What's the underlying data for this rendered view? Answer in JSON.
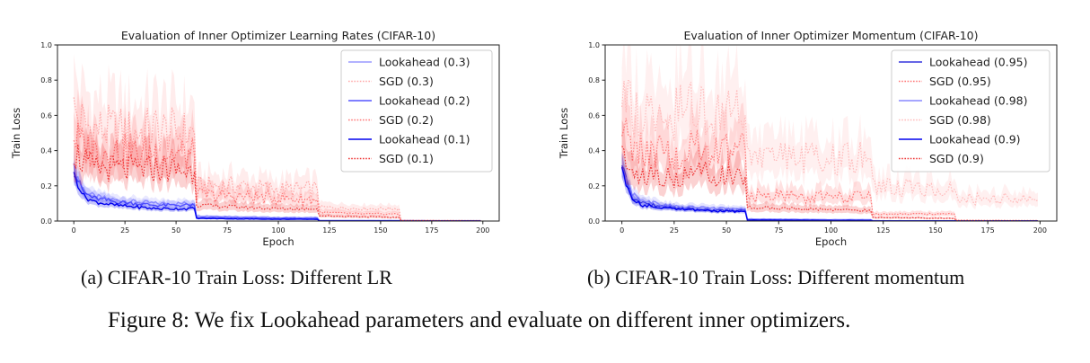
{
  "subcaptions": {
    "a": "(a) CIFAR-10 Train Loss: Different LR",
    "b": "(b) CIFAR-10 Train Loss: Different momentum"
  },
  "figure_caption": "Figure 8: We fix Lookahead parameters and evaluate on different inner optimizers.",
  "chart_data": [
    {
      "type": "line",
      "title": "Evaluation of Inner Optimizer Learning Rates (CIFAR-10)",
      "xlabel": "Epoch",
      "ylabel": "Train Loss",
      "xlim": [
        -8,
        208
      ],
      "ylim": [
        0,
        1.0
      ],
      "xticks": [
        0,
        25,
        50,
        75,
        100,
        125,
        150,
        175,
        200
      ],
      "yticks": [
        0.0,
        0.2,
        0.4,
        0.6,
        0.8,
        1.0
      ],
      "grid": false,
      "legend_position": "top-right",
      "series": [
        {
          "name": "Lookahead (0.3)",
          "color": "#9999ff",
          "style": "solid",
          "x": [
            0,
            5,
            10,
            20,
            30,
            40,
            50,
            59,
            60,
            80,
            100,
            119,
            120,
            160,
            199
          ],
          "y": [
            0.3,
            0.17,
            0.14,
            0.12,
            0.11,
            0.1,
            0.1,
            0.1,
            0.03,
            0.025,
            0.02,
            0.02,
            0.003,
            0.002,
            0.002
          ]
        },
        {
          "name": "SGD (0.3)",
          "color": "#ffaaaa",
          "style": "dotted",
          "x": [
            0,
            5,
            10,
            20,
            30,
            40,
            50,
            59,
            60,
            80,
            100,
            119,
            120,
            140,
            159,
            160,
            199
          ],
          "y": [
            0.62,
            0.55,
            0.52,
            0.52,
            0.5,
            0.52,
            0.5,
            0.5,
            0.2,
            0.2,
            0.18,
            0.18,
            0.08,
            0.07,
            0.07,
            0.005,
            0.003
          ]
        },
        {
          "name": "Lookahead (0.2)",
          "color": "#5555ff",
          "style": "solid",
          "x": [
            0,
            5,
            10,
            20,
            30,
            40,
            50,
            59,
            60,
            80,
            100,
            119,
            120,
            160,
            199
          ],
          "y": [
            0.28,
            0.16,
            0.13,
            0.11,
            0.1,
            0.09,
            0.09,
            0.09,
            0.02,
            0.018,
            0.015,
            0.015,
            0.002,
            0.002,
            0.001
          ]
        },
        {
          "name": "SGD (0.2)",
          "color": "#ff7777",
          "style": "dotted",
          "x": [
            0,
            5,
            10,
            20,
            30,
            40,
            50,
            59,
            60,
            80,
            100,
            119,
            120,
            140,
            159,
            160,
            199
          ],
          "y": [
            0.48,
            0.42,
            0.4,
            0.4,
            0.38,
            0.4,
            0.38,
            0.37,
            0.15,
            0.14,
            0.13,
            0.12,
            0.05,
            0.04,
            0.04,
            0.003,
            0.002
          ]
        },
        {
          "name": "Lookahead (0.1)",
          "color": "#0000ee",
          "style": "solid",
          "x": [
            0,
            5,
            10,
            20,
            30,
            40,
            50,
            59,
            60,
            80,
            100,
            119,
            120,
            160,
            199
          ],
          "y": [
            0.26,
            0.14,
            0.11,
            0.09,
            0.08,
            0.07,
            0.07,
            0.07,
            0.015,
            0.012,
            0.01,
            0.01,
            0.001,
            0.001,
            0.001
          ]
        },
        {
          "name": "SGD (0.1)",
          "color": "#ee3333",
          "style": "dotted",
          "x": [
            0,
            5,
            10,
            20,
            30,
            40,
            50,
            59,
            60,
            80,
            100,
            119,
            120,
            140,
            159,
            160,
            199
          ],
          "y": [
            0.4,
            0.33,
            0.3,
            0.3,
            0.29,
            0.3,
            0.29,
            0.28,
            0.09,
            0.08,
            0.07,
            0.07,
            0.03,
            0.025,
            0.02,
            0.002,
            0.001
          ]
        }
      ]
    },
    {
      "type": "line",
      "title": "Evaluation of Inner Optimizer Momentum (CIFAR-10)",
      "xlabel": "Epoch",
      "ylabel": "Train Loss",
      "xlim": [
        -8,
        208
      ],
      "ylim": [
        0,
        1.0
      ],
      "xticks": [
        0,
        25,
        50,
        75,
        100,
        125,
        150,
        175,
        200
      ],
      "yticks": [
        0.0,
        0.2,
        0.4,
        0.6,
        0.8,
        1.0
      ],
      "grid": false,
      "legend_position": "top-right",
      "series": [
        {
          "name": "Lookahead (0.95)",
          "color": "#3333dd",
          "style": "solid",
          "x": [
            0,
            5,
            10,
            20,
            30,
            40,
            50,
            59,
            60,
            80,
            100,
            119,
            120,
            160,
            199
          ],
          "y": [
            0.3,
            0.14,
            0.1,
            0.08,
            0.07,
            0.065,
            0.06,
            0.06,
            0.008,
            0.006,
            0.005,
            0.005,
            0.001,
            0.001,
            0.001
          ]
        },
        {
          "name": "SGD (0.95)",
          "color": "#ff7777",
          "style": "dotted",
          "x": [
            0,
            5,
            10,
            20,
            30,
            40,
            50,
            59,
            60,
            80,
            100,
            119,
            120,
            140,
            159,
            160,
            199
          ],
          "y": [
            0.5,
            0.42,
            0.4,
            0.4,
            0.4,
            0.41,
            0.4,
            0.4,
            0.15,
            0.14,
            0.14,
            0.14,
            0.04,
            0.04,
            0.04,
            0.005,
            0.003
          ]
        },
        {
          "name": "Lookahead (0.98)",
          "color": "#8888ff",
          "style": "solid",
          "x": [
            0,
            5,
            10,
            20,
            30,
            40,
            50,
            59,
            60,
            80,
            100,
            119,
            120,
            160,
            199
          ],
          "y": [
            0.32,
            0.16,
            0.12,
            0.09,
            0.08,
            0.075,
            0.07,
            0.07,
            0.012,
            0.01,
            0.008,
            0.008,
            0.002,
            0.001,
            0.001
          ]
        },
        {
          "name": "SGD (0.98)",
          "color": "#ffbbbb",
          "style": "dotted",
          "x": [
            0,
            5,
            10,
            20,
            30,
            40,
            50,
            59,
            60,
            80,
            100,
            119,
            120,
            140,
            159,
            160,
            199
          ],
          "y": [
            0.7,
            0.62,
            0.6,
            0.62,
            0.62,
            0.64,
            0.62,
            0.6,
            0.38,
            0.37,
            0.36,
            0.35,
            0.2,
            0.19,
            0.18,
            0.13,
            0.12
          ]
        },
        {
          "name": "Lookahead (0.9)",
          "color": "#0000ee",
          "style": "solid",
          "x": [
            0,
            5,
            10,
            20,
            30,
            40,
            50,
            59,
            60,
            80,
            100,
            119,
            120,
            160,
            199
          ],
          "y": [
            0.28,
            0.13,
            0.09,
            0.075,
            0.065,
            0.06,
            0.055,
            0.055,
            0.006,
            0.005,
            0.004,
            0.004,
            0.001,
            0.001,
            0.001
          ]
        },
        {
          "name": "SGD (0.9)",
          "color": "#ee3333",
          "style": "dotted",
          "x": [
            0,
            5,
            10,
            20,
            30,
            40,
            50,
            59,
            60,
            80,
            100,
            119,
            120,
            140,
            159,
            160,
            199
          ],
          "y": [
            0.34,
            0.28,
            0.26,
            0.26,
            0.26,
            0.27,
            0.26,
            0.25,
            0.08,
            0.07,
            0.065,
            0.06,
            0.02,
            0.018,
            0.015,
            0.002,
            0.001
          ]
        }
      ]
    }
  ]
}
